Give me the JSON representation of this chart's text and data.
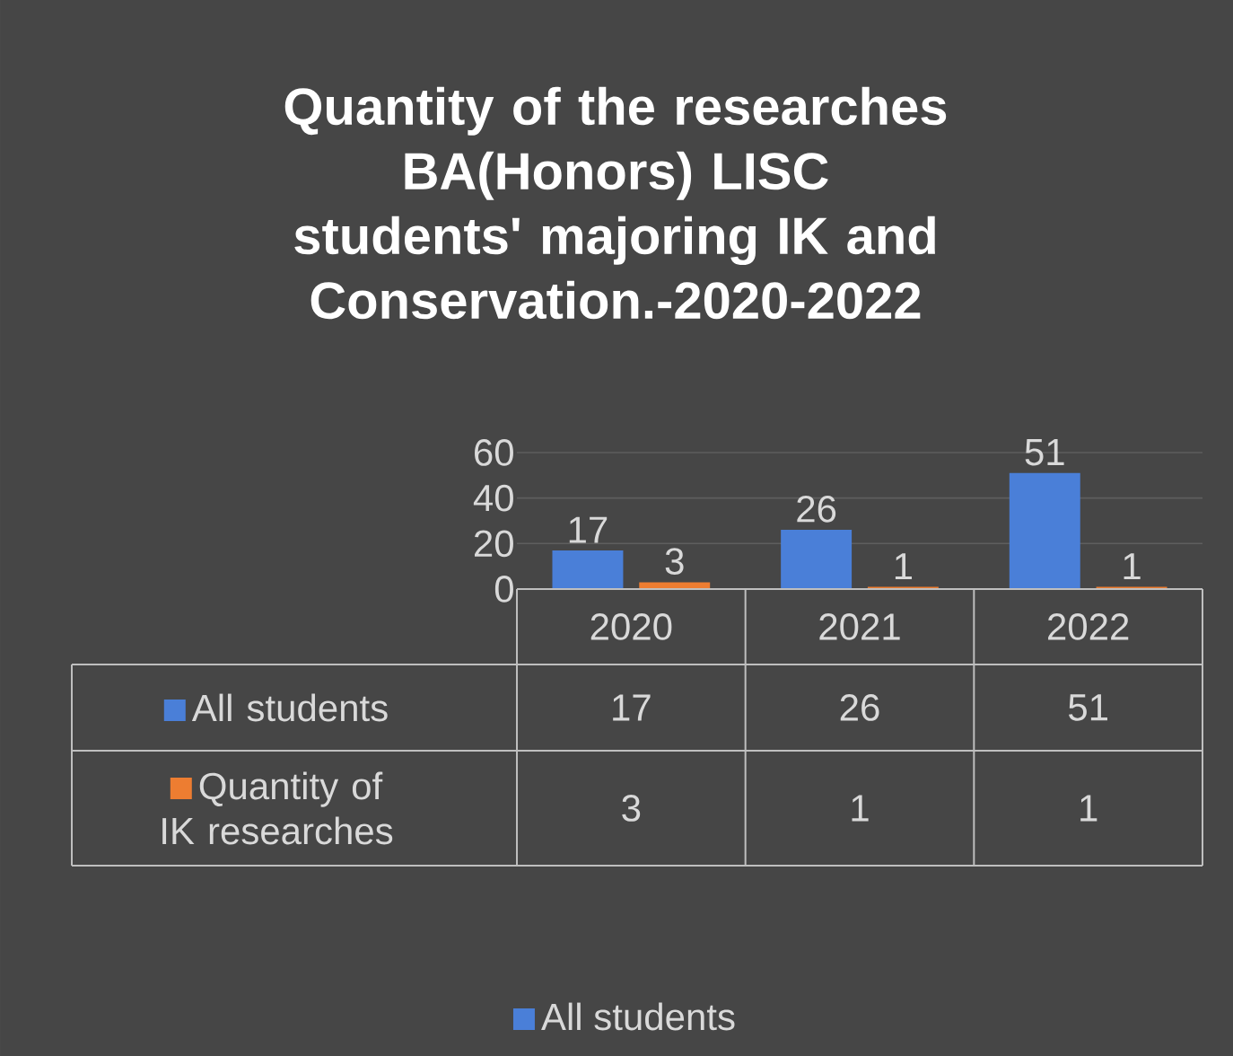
{
  "chart_data": {
    "type": "bar",
    "title": "Quantity of the researches BA(Honors) LISC students' majoring IK and Conservation.-2020-2022",
    "categories": [
      "2020",
      "2021",
      "2022"
    ],
    "series": [
      {
        "name": "All students",
        "color": "#4a7fd8",
        "values": [
          17,
          26,
          51
        ],
        "value_labels": [
          "17",
          "26",
          "51"
        ]
      },
      {
        "name": "Quantity of IK researches",
        "color": "#ed7d31",
        "values": [
          3,
          1,
          1
        ],
        "value_labels": [
          "3",
          "1",
          "1"
        ]
      }
    ],
    "ylim": [
      0,
      60
    ],
    "yticks": [
      0,
      20,
      40,
      60
    ],
    "grid": "y",
    "legend": "bottom",
    "data_labels": true,
    "tick_labels": "y"
  }
}
